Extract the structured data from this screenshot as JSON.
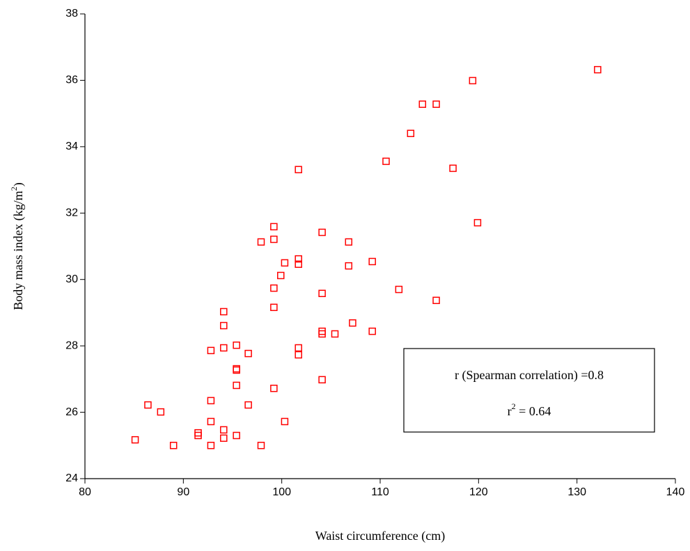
{
  "chart_data": {
    "type": "scatter",
    "xlabel": "Waist circumference (cm)",
    "ylabel": {
      "text": "Body mass index (kg/m",
      "sup": "2",
      "end": ")"
    },
    "annotation": {
      "line1": "r (Spearman correlation) =0.8",
      "line2": {
        "text": "r",
        "sup": "2",
        "end": " = 0.64"
      }
    },
    "color": "#ff0000",
    "xlim": [
      80,
      140
    ],
    "xticks": [
      80,
      90,
      100,
      110,
      120,
      130,
      140
    ],
    "ylim": [
      24,
      38
    ],
    "yticks": [
      24,
      26,
      28,
      30,
      32,
      34,
      36,
      38
    ],
    "x": [
      85.1,
      86.4,
      87.7,
      89.0,
      91.5,
      91.5,
      92.8,
      92.8,
      92.8,
      92.8,
      94.1,
      94.1,
      94.1,
      94.1,
      94.1,
      95.4,
      95.4,
      95.4,
      95.4,
      95.4,
      96.6,
      96.6,
      97.9,
      97.9,
      99.2,
      99.2,
      99.2,
      99.2,
      99.2,
      99.9,
      100.3,
      100.3,
      101.7,
      101.7,
      101.7,
      101.7,
      101.7,
      104.1,
      104.1,
      104.1,
      104.1,
      104.1,
      105.4,
      106.8,
      106.8,
      107.2,
      109.2,
      109.2,
      110.6,
      111.9,
      113.1,
      114.3,
      115.7,
      115.7,
      117.4,
      119.4,
      119.9,
      132.1
    ],
    "y": [
      25.17,
      26.22,
      26.01,
      25.0,
      25.38,
      25.3,
      26.35,
      25.72,
      25.0,
      27.86,
      29.03,
      28.61,
      27.94,
      25.47,
      25.22,
      28.02,
      27.31,
      27.27,
      26.81,
      25.3,
      27.77,
      26.22,
      31.13,
      25.0,
      31.59,
      31.21,
      29.74,
      29.16,
      26.72,
      30.12,
      30.5,
      25.72,
      33.31,
      30.62,
      30.46,
      27.94,
      27.73,
      31.42,
      29.58,
      28.44,
      28.36,
      26.98,
      28.36,
      31.13,
      30.41,
      28.69,
      30.54,
      28.44,
      33.56,
      29.7,
      34.4,
      35.28,
      35.28,
      29.37,
      33.35,
      35.99,
      31.71,
      36.32
    ]
  }
}
